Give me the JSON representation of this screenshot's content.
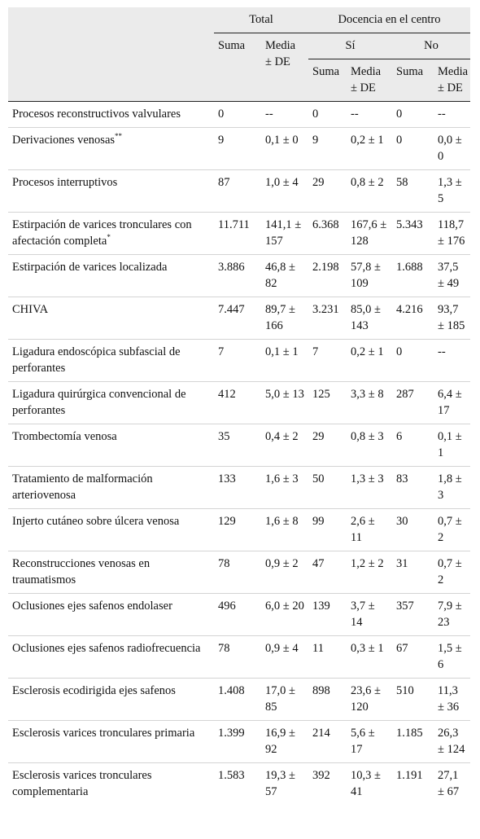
{
  "header": {
    "total": "Total",
    "docencia": "Docencia en el centro",
    "si": "Sí",
    "no": "No",
    "suma": "Suma",
    "media_de": "Media ± DE"
  },
  "rows": [
    {
      "name": "Procesos reconstructivos valvulares",
      "sup": "",
      "total_suma": "0",
      "total_media": "--",
      "si_suma": "0",
      "si_media": "--",
      "no_suma": "0",
      "no_media": "--"
    },
    {
      "name": "Derivaciones venosas",
      "sup": "**",
      "total_suma": "9",
      "total_media": "0,1 ± 0",
      "si_suma": "9",
      "si_media": "0,2 ± 1",
      "no_suma": "0",
      "no_media": "0,0 ± 0"
    },
    {
      "name": "Procesos interruptivos",
      "sup": "",
      "total_suma": "87",
      "total_media": "1,0 ± 4",
      "si_suma": "29",
      "si_media": "0,8 ± 2",
      "no_suma": "58",
      "no_media": "1,3 ± 5"
    },
    {
      "name": "Estirpación de varices tronculares con afectación completa",
      "sup": "*",
      "total_suma": "11.711",
      "total_media": "141,1 ± 157",
      "si_suma": "6.368",
      "si_media": "167,6 ± 128",
      "no_suma": "5.343",
      "no_media": "118,7 ± 176"
    },
    {
      "name": "Estirpación de varices localizada",
      "sup": "",
      "total_suma": "3.886",
      "total_media": "46,8 ± 82",
      "si_suma": "2.198",
      "si_media": "57,8 ± 109",
      "no_suma": "1.688",
      "no_media": "37,5 ± 49"
    },
    {
      "name": "CHIVA",
      "sup": "",
      "total_suma": "7.447",
      "total_media": "89,7 ± 166",
      "si_suma": "3.231",
      "si_media": "85,0 ± 143",
      "no_suma": "4.216",
      "no_media": "93,7 ± 185"
    },
    {
      "name": "Ligadura endoscópica subfascial de perforantes",
      "sup": "",
      "total_suma": "7",
      "total_media": "0,1 ± 1",
      "si_suma": "7",
      "si_media": "0,2 ± 1",
      "no_suma": "0",
      "no_media": "--"
    },
    {
      "name": "Ligadura quirúrgica convencional de perforantes",
      "sup": "",
      "total_suma": "412",
      "total_media": "5,0 ± 13",
      "si_suma": "125",
      "si_media": "3,3 ± 8",
      "no_suma": "287",
      "no_media": "6,4 ± 17"
    },
    {
      "name": "Trombectomía venosa",
      "sup": "",
      "total_suma": "35",
      "total_media": "0,4 ± 2",
      "si_suma": "29",
      "si_media": "0,8 ± 3",
      "no_suma": "6",
      "no_media": "0,1 ± 1"
    },
    {
      "name": "Tratamiento de malformación arteriovenosa",
      "sup": "",
      "total_suma": "133",
      "total_media": "1,6 ± 3",
      "si_suma": "50",
      "si_media": "1,3 ± 3",
      "no_suma": "83",
      "no_media": "1,8 ± 3"
    },
    {
      "name": "Injerto cutáneo sobre úlcera venosa",
      "sup": "",
      "total_suma": "129",
      "total_media": "1,6 ± 8",
      "si_suma": "99",
      "si_media": "2,6 ± 11",
      "no_suma": "30",
      "no_media": "0,7 ± 2"
    },
    {
      "name": "Reconstrucciones venosas en traumatismos",
      "sup": "",
      "total_suma": "78",
      "total_media": "0,9 ± 2",
      "si_suma": "47",
      "si_media": "1,2 ± 2",
      "no_suma": "31",
      "no_media": "0,7 ± 2"
    },
    {
      "name": "Oclusiones ejes safenos endolaser",
      "sup": "",
      "total_suma": "496",
      "total_media": "6,0 ± 20",
      "si_suma": "139",
      "si_media": "3,7 ± 14",
      "no_suma": "357",
      "no_media": "7,9 ± 23"
    },
    {
      "name": "Oclusiones ejes safenos radiofrecuencia",
      "sup": "",
      "total_suma": "78",
      "total_media": "0,9 ± 4",
      "si_suma": "11",
      "si_media": "0,3 ± 1",
      "no_suma": "67",
      "no_media": "1,5 ± 6"
    },
    {
      "name": "Esclerosis ecodirigida ejes safenos",
      "sup": "",
      "total_suma": "1.408",
      "total_media": "17,0 ± 85",
      "si_suma": "898",
      "si_media": "23,6 ± 120",
      "no_suma": "510",
      "no_media": "11,3 ± 36"
    },
    {
      "name": "Esclerosis varices tronculares primaria",
      "sup": "",
      "total_suma": "1.399",
      "total_media": "16,9 ± 92",
      "si_suma": "214",
      "si_media": "5,6 ± 17",
      "no_suma": "1.185",
      "no_media": "26,3 ± 124"
    },
    {
      "name": "Esclerosis varices tronculares complementaria",
      "sup": "",
      "total_suma": "1.583",
      "total_media": "19,3 ± 57",
      "si_suma": "392",
      "si_media": "10,3 ± 41",
      "no_suma": "1.191",
      "no_media": "27,1 ± 67"
    }
  ]
}
